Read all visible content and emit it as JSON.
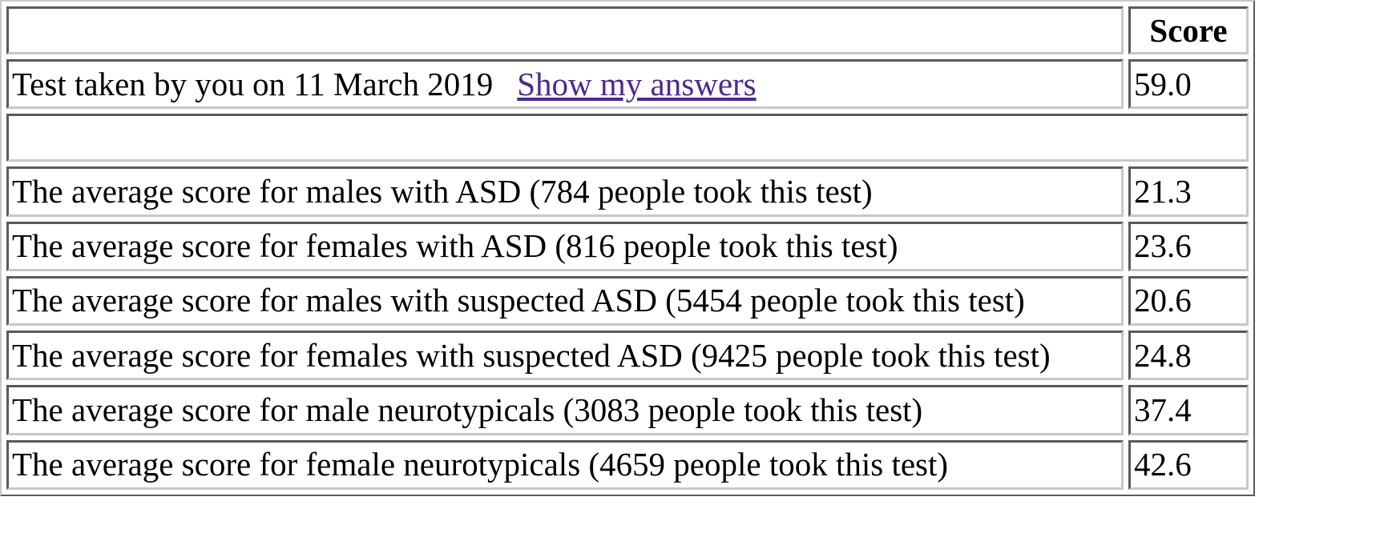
{
  "table": {
    "header": {
      "blank": "",
      "score": "Score"
    },
    "my_test": {
      "label": "Test taken by you on 11 March 2019",
      "link": "Show my answers",
      "score": "59.0"
    },
    "rows": [
      {
        "label": "The average score for males with ASD (784 people took this test)",
        "score": "21.3"
      },
      {
        "label": "The average score for females with ASD (816 people took this test)",
        "score": "23.6"
      },
      {
        "label": "The average score for males with suspected ASD (5454 people took this test)",
        "score": "20.6"
      },
      {
        "label": "The average score for females with suspected ASD (9425 people took this test)",
        "score": "24.8"
      },
      {
        "label": "The average score for male neurotypicals (3083 people took this test)",
        "score": "37.4"
      },
      {
        "label": "The average score for female neurotypicals (4659 people took this test)",
        "score": "42.6"
      }
    ]
  }
}
